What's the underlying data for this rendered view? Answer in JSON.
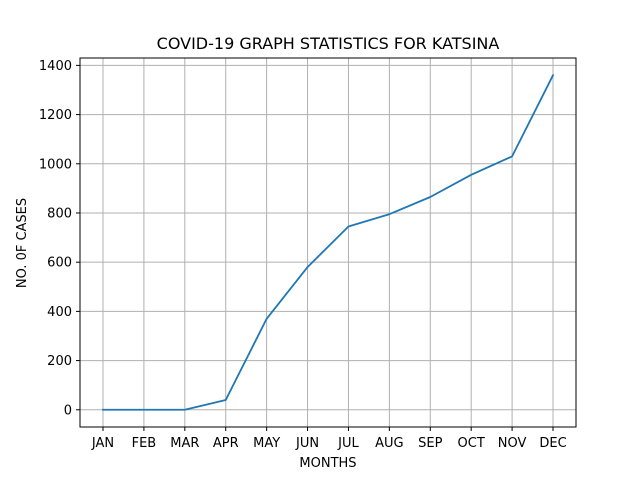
{
  "chart_data": {
    "type": "line",
    "title": "COVID-19 GRAPH STATISTICS FOR KATSINA",
    "xlabel": "MONTHS",
    "ylabel": "NO. 0F CASES",
    "categories": [
      "JAN",
      "FEB",
      "MAR",
      "APR",
      "MAY",
      "JUN",
      "JUL",
      "AUG",
      "SEP",
      "OCT",
      "NOV",
      "DEC"
    ],
    "series": [
      {
        "values": [
          0,
          0,
          0,
          40,
          370,
          580,
          745,
          795,
          865,
          955,
          1030,
          1360
        ],
        "color": "#1f77b4"
      }
    ],
    "ylim": [
      -70,
      1430
    ],
    "yticks": [
      0,
      200,
      400,
      600,
      800,
      1000,
      1200,
      1400
    ],
    "grid": true
  }
}
